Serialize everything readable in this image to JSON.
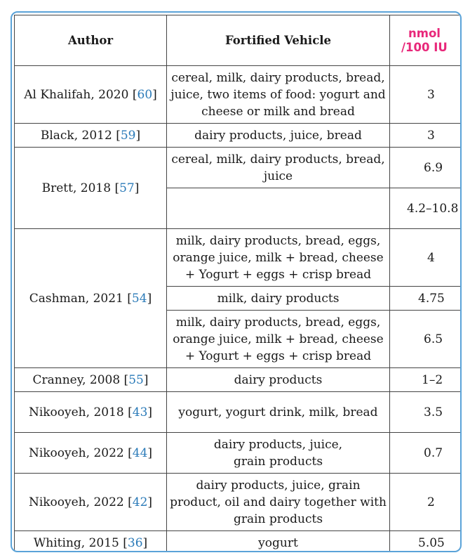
{
  "table": {
    "headers": {
      "author": "Author",
      "vehicle": "Fortified Vehicle",
      "unit_line1": "nmol",
      "unit_line2": "/100 IU"
    },
    "rows": [
      {
        "author": "Al Khalifah, 2020",
        "ref": "60",
        "vehicles": [
          {
            "text": "cereal, milk, dairy products, bread, juice, two items of food: yogurt and cheese or milk and bread",
            "value": "3"
          }
        ]
      },
      {
        "author": "Black, 2012",
        "ref": "59",
        "vehicles": [
          {
            "text": "dairy products, juice, bread",
            "value": "3"
          }
        ]
      },
      {
        "author": "Brett, 2018",
        "ref": "57",
        "vehicles": [
          {
            "text": "cereal, milk, dairy products, bread, juice",
            "value": "6.9"
          },
          {
            "text": "",
            "value": "4.2–10.8"
          }
        ]
      },
      {
        "author": "Cashman, 2021",
        "ref": "54",
        "vehicles": [
          {
            "text": "milk, dairy products, bread, eggs, orange juice, milk + bread, cheese + Yogurt + eggs + crisp bread",
            "value": "4"
          },
          {
            "text": "milk, dairy products",
            "value": "4.75"
          },
          {
            "text": "milk, dairy products, bread, eggs, orange juice, milk + bread, cheese + Yogurt + eggs + crisp bread",
            "value": "6.5"
          }
        ]
      },
      {
        "author": "Cranney, 2008",
        "ref": "55",
        "vehicles": [
          {
            "text": "dairy products",
            "value": "1–2"
          }
        ]
      },
      {
        "author": "Nikooyeh, 2018",
        "ref": "43",
        "vehicles": [
          {
            "text": "yogurt, yogurt drink, milk, bread",
            "value": "3.5"
          }
        ]
      },
      {
        "author": "Nikooyeh, 2022",
        "ref": "44",
        "vehicles": [
          {
            "text": "dairy products, juice, grain products",
            "value": "0.7"
          }
        ]
      },
      {
        "author": "Nikooyeh, 2022",
        "ref": "42",
        "vehicles": [
          {
            "text": "dairy products, juice, grain product, oil and dairy together with grain products",
            "value": "2"
          }
        ]
      },
      {
        "author": "Whiting, 2015",
        "ref": "36",
        "vehicles": [
          {
            "text": "yogurt",
            "value": "5.05"
          }
        ]
      }
    ]
  }
}
